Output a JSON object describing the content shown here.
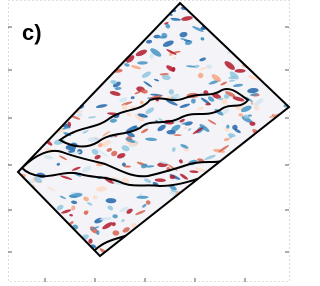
{
  "panel_label": "c)"
}
